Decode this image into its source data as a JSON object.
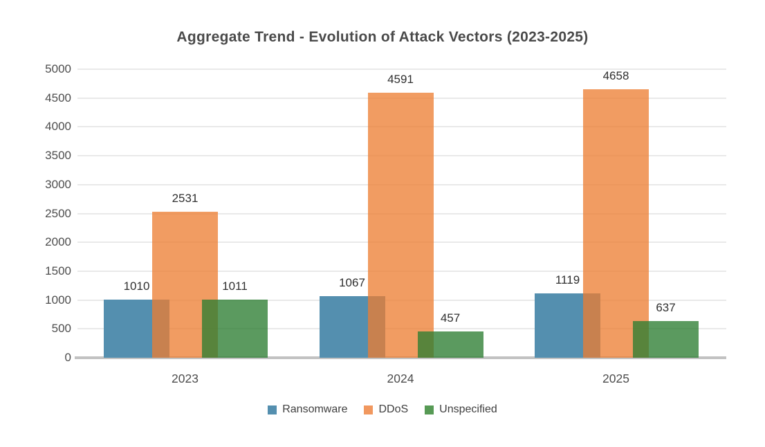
{
  "chart_data": {
    "type": "bar",
    "title": "Aggregate Trend - Evolution of Attack Vectors (2023-2025)",
    "categories": [
      "2023",
      "2024",
      "2025"
    ],
    "series": [
      {
        "name": "Ransomware",
        "values": [
          1010,
          1067,
          1119
        ],
        "legend_color": "#548FAF",
        "fill": "rgba(84,143,175,1)"
      },
      {
        "name": "DDoS",
        "values": [
          2531,
          4591,
          4658
        ],
        "legend_color": "#F1985F",
        "fill": "rgba(237,125,49,0.76)"
      },
      {
        "name": "Unspecified",
        "values": [
          1011,
          457,
          637
        ],
        "legend_color": "#579A55",
        "fill": "rgba(45,125,50,0.78)"
      }
    ],
    "ylim": [
      0,
      5000
    ],
    "yticks": [
      0,
      500,
      1000,
      1500,
      2000,
      2500,
      3000,
      3500,
      4000,
      4500,
      5000
    ],
    "grid": true,
    "legend_position": "bottom",
    "data_labels": true,
    "colors": {
      "grid_line": "#E9E9E9",
      "baseline": "#C2C2C2",
      "title_text": "#4A4A4A",
      "axis_text": "#4D4D4D",
      "value_label_text": "#2F2F2F",
      "legend_text": "#3F3F3F",
      "background": "#FFFFFF"
    }
  }
}
